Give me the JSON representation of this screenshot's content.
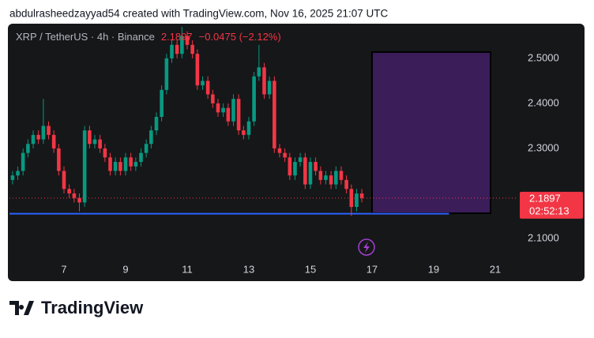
{
  "header": "abdulrasheedzayyad54 created with TradingView.com, Nov 16, 2025 21:07 UTC",
  "logo": "TradingView",
  "chart_data": {
    "type": "candlestick",
    "title": "XRP / TetherUS · 4h · Binance",
    "last_price": 2.1897,
    "change_label": "−0.0475 (−2.12%)",
    "countdown": "02:52:13",
    "up_color": "#089981",
    "down_color": "#f23645",
    "x": [
      5.33,
      5.5,
      5.67,
      5.83,
      6,
      6.17,
      6.33,
      6.5,
      6.67,
      6.83,
      7,
      7.17,
      7.33,
      7.5,
      7.67,
      7.83,
      8,
      8.17,
      8.33,
      8.5,
      8.67,
      8.83,
      9,
      9.17,
      9.33,
      9.5,
      9.67,
      9.83,
      10,
      10.17,
      10.33,
      10.5,
      10.67,
      10.83,
      11,
      11.17,
      11.33,
      11.5,
      11.67,
      11.83,
      12,
      12.17,
      12.33,
      12.5,
      12.67,
      12.83,
      13,
      13.17,
      13.33,
      13.5,
      13.67,
      13.83,
      14,
      14.17,
      14.33,
      14.5,
      14.67,
      14.83,
      15,
      15.17,
      15.33,
      15.5,
      15.67,
      15.83,
      16,
      16.17,
      16.33,
      16.5,
      16.67
    ],
    "open": [
      2.23,
      2.24,
      2.25,
      2.29,
      2.31,
      2.33,
      2.32,
      2.35,
      2.33,
      2.3,
      2.25,
      2.21,
      2.2,
      2.19,
      2.18,
      2.34,
      2.31,
      2.32,
      2.3,
      2.28,
      2.25,
      2.27,
      2.25,
      2.28,
      2.26,
      2.27,
      2.29,
      2.31,
      2.34,
      2.37,
      2.43,
      2.5,
      2.53,
      2.51,
      2.55,
      2.53,
      2.51,
      2.44,
      2.45,
      2.42,
      2.4,
      2.38,
      2.39,
      2.36,
      2.41,
      2.34,
      2.33,
      2.36,
      2.46,
      2.48,
      2.42,
      2.45,
      2.3,
      2.29,
      2.28,
      2.24,
      2.27,
      2.28,
      2.22,
      2.27,
      2.25,
      2.23,
      2.24,
      2.22,
      2.25,
      2.23,
      2.21,
      2.17,
      2.2
    ],
    "high": [
      2.25,
      2.26,
      2.3,
      2.32,
      2.34,
      2.34,
      2.41,
      2.36,
      2.34,
      2.31,
      2.26,
      2.22,
      2.21,
      2.2,
      2.35,
      2.35,
      2.33,
      2.33,
      2.31,
      2.29,
      2.28,
      2.28,
      2.29,
      2.29,
      2.28,
      2.3,
      2.32,
      2.35,
      2.38,
      2.44,
      2.51,
      2.54,
      2.54,
      2.57,
      2.56,
      2.54,
      2.52,
      2.46,
      2.46,
      2.43,
      2.41,
      2.4,
      2.4,
      2.42,
      2.42,
      2.35,
      2.37,
      2.47,
      2.53,
      2.49,
      2.46,
      2.46,
      2.31,
      2.3,
      2.29,
      2.28,
      2.29,
      2.29,
      2.28,
      2.28,
      2.26,
      2.25,
      2.25,
      2.26,
      2.26,
      2.24,
      2.22,
      2.21,
      2.21
    ],
    "low": [
      2.22,
      2.23,
      2.24,
      2.28,
      2.3,
      2.31,
      2.31,
      2.32,
      2.29,
      2.24,
      2.2,
      2.19,
      2.18,
      2.16,
      2.17,
      2.3,
      2.3,
      2.29,
      2.27,
      2.24,
      2.24,
      2.24,
      2.24,
      2.25,
      2.25,
      2.26,
      2.28,
      2.3,
      2.33,
      2.36,
      2.42,
      2.49,
      2.5,
      2.5,
      2.52,
      2.5,
      2.43,
      2.43,
      2.41,
      2.39,
      2.37,
      2.37,
      2.35,
      2.35,
      2.33,
      2.32,
      2.32,
      2.35,
      2.45,
      2.41,
      2.41,
      2.29,
      2.28,
      2.27,
      2.23,
      2.23,
      2.26,
      2.21,
      2.21,
      2.24,
      2.22,
      2.22,
      2.21,
      2.21,
      2.22,
      2.2,
      2.15,
      2.16,
      2.18
    ],
    "close": [
      2.24,
      2.25,
      2.29,
      2.31,
      2.33,
      2.32,
      2.35,
      2.33,
      2.3,
      2.25,
      2.21,
      2.2,
      2.19,
      2.18,
      2.34,
      2.31,
      2.32,
      2.3,
      2.28,
      2.25,
      2.27,
      2.25,
      2.28,
      2.26,
      2.27,
      2.29,
      2.31,
      2.34,
      2.37,
      2.43,
      2.5,
      2.53,
      2.51,
      2.55,
      2.53,
      2.51,
      2.44,
      2.45,
      2.42,
      2.4,
      2.38,
      2.39,
      2.36,
      2.41,
      2.34,
      2.33,
      2.36,
      2.46,
      2.48,
      2.42,
      2.45,
      2.3,
      2.29,
      2.28,
      2.24,
      2.27,
      2.28,
      2.22,
      2.27,
      2.25,
      2.23,
      2.24,
      2.22,
      2.25,
      2.23,
      2.21,
      2.17,
      2.2,
      2.1897
    ],
    "horizontal_line": {
      "y": 2.155,
      "x": [
        5.23,
        19.5
      ],
      "color": "#2962ff"
    },
    "rectangle": {
      "x": [
        17,
        20.85
      ],
      "y": [
        2.156,
        2.514
      ],
      "color": "#3b1d5a"
    },
    "xlim": [
      5.23,
      21.72
    ],
    "ylim": [
      2.007,
      2.577
    ],
    "xticks": [
      7,
      9,
      11,
      13,
      15,
      17,
      19,
      21
    ],
    "yticks": [
      {
        "value": 2.1,
        "label": "2.1000"
      },
      {
        "value": 2.3,
        "label": "2.3000"
      },
      {
        "value": 2.4,
        "label": "2.4000"
      },
      {
        "value": 2.5,
        "label": "2.5000"
      }
    ]
  }
}
